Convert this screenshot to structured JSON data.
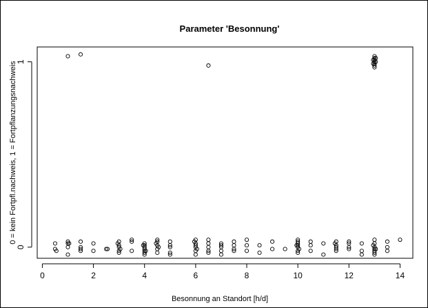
{
  "chart_data": {
    "type": "scatter",
    "title": "Parameter 'Besonnung'",
    "xlabel": "Besonnung an Standort [h/d]",
    "ylabel": "0 = kein Fortpfl.nachweis,   1 = Fortpflanzungsnachweis",
    "xlim": [
      -0.2,
      14.5
    ],
    "ylim": [
      -0.06,
      1.08
    ],
    "x_ticks": [
      0,
      2,
      4,
      6,
      8,
      10,
      12,
      14
    ],
    "y_ticks": [
      0,
      1
    ],
    "grid": false,
    "legend": "none",
    "marker_color": "#000000",
    "series": [
      {
        "points": [
          [
            1.0,
            1.03
          ],
          [
            1.5,
            1.04
          ],
          [
            6.5,
            0.98
          ],
          [
            13.0,
            1.03
          ],
          [
            13.0,
            1.02
          ],
          [
            13.0,
            1.01
          ],
          [
            13.0,
            1.0
          ],
          [
            13.0,
            0.99
          ],
          [
            13.0,
            0.98
          ],
          [
            13.0,
            0.97
          ],
          [
            13.05,
            1.02
          ],
          [
            13.05,
            1.0
          ],
          [
            12.95,
            1.01
          ],
          [
            12.95,
            0.99
          ],
          [
            0.5,
            0.02
          ],
          [
            0.5,
            -0.01
          ],
          [
            0.55,
            -0.02
          ],
          [
            1.0,
            0.03
          ],
          [
            1.0,
            0.02
          ],
          [
            1.0,
            0.0
          ],
          [
            1.0,
            -0.04
          ],
          [
            1.05,
            0.02
          ],
          [
            1.5,
            0.03
          ],
          [
            1.5,
            0.0
          ],
          [
            1.5,
            -0.01
          ],
          [
            1.5,
            -0.02
          ],
          [
            2.0,
            0.02
          ],
          [
            2.0,
            -0.02
          ],
          [
            2.5,
            -0.01
          ],
          [
            2.55,
            -0.01
          ],
          [
            3.0,
            0.03
          ],
          [
            3.0,
            0.01
          ],
          [
            3.0,
            0.0
          ],
          [
            3.0,
            -0.02
          ],
          [
            3.0,
            -0.03
          ],
          [
            2.95,
            0.02
          ],
          [
            3.05,
            -0.01
          ],
          [
            3.5,
            0.04
          ],
          [
            3.5,
            0.03
          ],
          [
            3.5,
            -0.02
          ],
          [
            4.0,
            0.02
          ],
          [
            4.0,
            0.01
          ],
          [
            4.0,
            0.0
          ],
          [
            4.0,
            -0.01
          ],
          [
            4.0,
            -0.02
          ],
          [
            4.0,
            -0.03
          ],
          [
            4.0,
            -0.04
          ],
          [
            3.95,
            0.01
          ],
          [
            4.05,
            -0.02
          ],
          [
            4.5,
            0.04
          ],
          [
            4.5,
            0.03
          ],
          [
            4.5,
            0.01
          ],
          [
            4.5,
            -0.01
          ],
          [
            4.5,
            -0.03
          ],
          [
            4.45,
            0.02
          ],
          [
            4.55,
            0.0
          ],
          [
            5.0,
            0.03
          ],
          [
            5.0,
            0.01
          ],
          [
            5.0,
            0.0
          ],
          [
            5.0,
            -0.03
          ],
          [
            5.0,
            -0.04
          ],
          [
            6.0,
            0.04
          ],
          [
            6.0,
            0.02
          ],
          [
            6.0,
            0.01
          ],
          [
            6.0,
            0.0
          ],
          [
            6.0,
            -0.02
          ],
          [
            6.0,
            -0.04
          ],
          [
            5.95,
            0.03
          ],
          [
            6.05,
            -0.01
          ],
          [
            6.5,
            0.04
          ],
          [
            6.5,
            0.02
          ],
          [
            6.5,
            0.0
          ],
          [
            6.5,
            -0.02
          ],
          [
            6.5,
            -0.03
          ],
          [
            7.0,
            0.02
          ],
          [
            7.0,
            0.01
          ],
          [
            7.0,
            0.0
          ],
          [
            7.0,
            -0.02
          ],
          [
            7.0,
            -0.04
          ],
          [
            7.5,
            0.03
          ],
          [
            7.5,
            0.01
          ],
          [
            7.5,
            -0.01
          ],
          [
            7.5,
            -0.02
          ],
          [
            8.0,
            0.04
          ],
          [
            8.0,
            0.01
          ],
          [
            8.0,
            -0.02
          ],
          [
            8.5,
            0.01
          ],
          [
            8.5,
            -0.03
          ],
          [
            9.0,
            0.03
          ],
          [
            9.0,
            -0.01
          ],
          [
            9.5,
            -0.01
          ],
          [
            10.0,
            0.04
          ],
          [
            10.0,
            0.03
          ],
          [
            10.0,
            0.02
          ],
          [
            10.0,
            0.01
          ],
          [
            10.0,
            0.0
          ],
          [
            10.0,
            -0.02
          ],
          [
            10.0,
            -0.03
          ],
          [
            9.95,
            0.01
          ],
          [
            10.05,
            -0.01
          ],
          [
            10.5,
            0.03
          ],
          [
            10.5,
            0.01
          ],
          [
            10.5,
            -0.02
          ],
          [
            11.0,
            0.02
          ],
          [
            11.0,
            -0.04
          ],
          [
            11.5,
            0.03
          ],
          [
            11.5,
            0.01
          ],
          [
            11.5,
            0.0
          ],
          [
            11.5,
            -0.01
          ],
          [
            11.5,
            -0.02
          ],
          [
            11.45,
            0.02
          ],
          [
            12.0,
            0.03
          ],
          [
            12.0,
            0.02
          ],
          [
            12.0,
            0.0
          ],
          [
            12.0,
            -0.01
          ],
          [
            12.5,
            0.02
          ],
          [
            12.5,
            -0.02
          ],
          [
            12.5,
            -0.04
          ],
          [
            13.0,
            0.04
          ],
          [
            13.0,
            0.02
          ],
          [
            13.0,
            0.0
          ],
          [
            13.0,
            -0.01
          ],
          [
            13.0,
            -0.02
          ],
          [
            13.0,
            -0.03
          ],
          [
            13.0,
            -0.04
          ],
          [
            12.95,
            0.01
          ],
          [
            13.05,
            -0.01
          ],
          [
            13.5,
            0.03
          ],
          [
            13.5,
            0.0
          ],
          [
            13.5,
            -0.02
          ],
          [
            14.0,
            0.04
          ]
        ]
      }
    ]
  }
}
